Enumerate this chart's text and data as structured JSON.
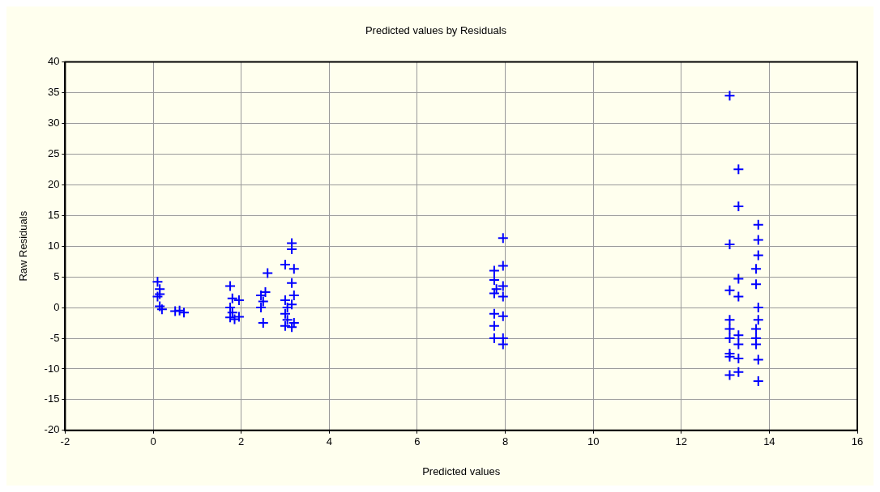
{
  "chart_data": {
    "type": "scatter",
    "title": "Predicted values by Residuals",
    "xlabel": "Predicted values",
    "ylabel": "Raw Residuals",
    "x": [
      0.1,
      0.15,
      0.15,
      0.1,
      0.15,
      0.2,
      0.5,
      0.6,
      0.7,
      1.75,
      1.8,
      1.75,
      1.8,
      1.75,
      1.85,
      1.95,
      1.95,
      2.45,
      2.5,
      2.45,
      2.5,
      2.6,
      2.55,
      3.0,
      3.0,
      3.05,
      3.0,
      3.05,
      3.0,
      3.15,
      3.15,
      3.2,
      3.15,
      3.2,
      3.15,
      3.2,
      3.15,
      7.75,
      7.75,
      7.8,
      7.75,
      7.75,
      7.75,
      7.75,
      7.95,
      7.95,
      7.95,
      7.95,
      7.95,
      7.95,
      7.95,
      13.1,
      13.1,
      13.1,
      13.1,
      13.1,
      13.1,
      13.1,
      13.1,
      13.1,
      13.3,
      13.3,
      13.3,
      13.3,
      13.3,
      13.3,
      13.3,
      13.3,
      13.75,
      13.75,
      13.75,
      13.7,
      13.7,
      13.75,
      13.75,
      13.7,
      13.7,
      13.7,
      13.75,
      13.75
    ],
    "values": [
      4.2,
      3,
      2.2,
      1.8,
      0.2,
      -0.3,
      -0.6,
      -0.5,
      -0.8,
      3.5,
      1.5,
      0,
      -0.8,
      -1.6,
      -1.9,
      1.2,
      -1.5,
      2,
      1,
      0,
      -2.5,
      5.6,
      2.5,
      7,
      1.2,
      0,
      -1,
      -2,
      -3,
      10.5,
      9.5,
      6.3,
      4,
      2,
      0.5,
      -2.5,
      -3.2,
      6,
      4.5,
      3,
      2.3,
      -1,
      -3,
      -5,
      11.3,
      6.8,
      3.5,
      1.8,
      -1.4,
      -5,
      -6,
      34.5,
      10.3,
      2.8,
      -2,
      -3.5,
      -5,
      -7.5,
      -8,
      -11,
      22.5,
      16.5,
      4.7,
      1.8,
      -4.5,
      -6,
      -8.3,
      -10.5,
      13.5,
      11,
      8.5,
      6.3,
      3.8,
      0,
      -2,
      -3.5,
      -5,
      -6,
      -8.5,
      -12
    ],
    "color": "#0000ff",
    "marker": "cross",
    "grid": true,
    "legend": false,
    "xlim": [
      -2,
      16
    ],
    "xticks": [
      -2,
      0,
      2,
      4,
      6,
      8,
      10,
      12,
      14,
      16
    ],
    "ylim": [
      -20,
      40
    ],
    "yticks": [
      -20,
      -15,
      -10,
      -5,
      0,
      5,
      10,
      15,
      20,
      25,
      30,
      35,
      40
    ]
  }
}
